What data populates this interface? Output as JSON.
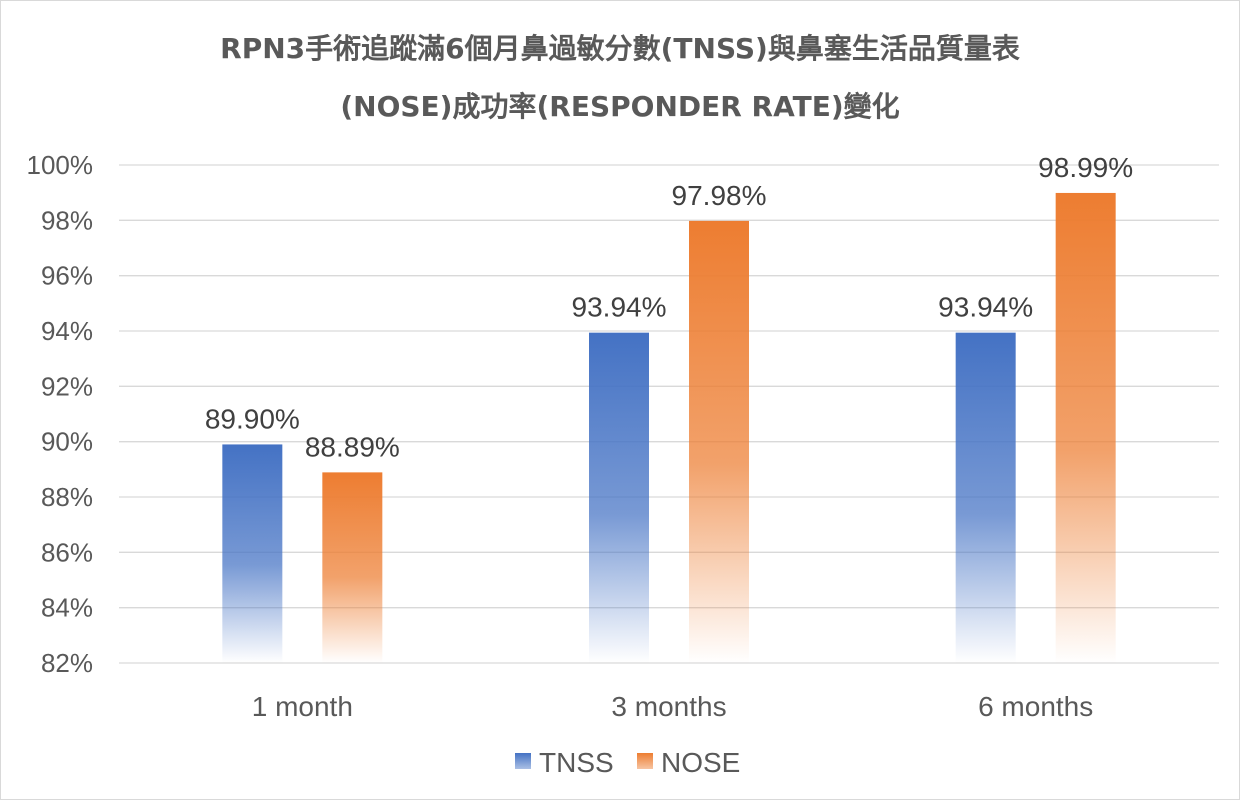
{
  "title_line1": "RPN3手術追蹤滿6個月鼻過敏分數(TNSS)與鼻塞生活品質量表",
  "title_line2": "(NOSE)成功率(RESPONDER RATE)變化",
  "colors": {
    "tnss": "#4472c4",
    "nose": "#ed7d31",
    "grid": "#d9d9d9",
    "text": "#595959"
  },
  "chart_data": {
    "type": "bar",
    "title": "RPN3手術追蹤滿6個月鼻過敏分數(TNSS)與鼻塞生活品質量表 (NOSE)成功率(RESPONDER RATE)變化",
    "categories": [
      "1 month",
      "3 months",
      "6 months"
    ],
    "series": [
      {
        "name": "TNSS",
        "values": [
          89.9,
          93.94,
          93.94
        ],
        "labels": [
          "89.90%",
          "93.94%",
          "93.94%"
        ]
      },
      {
        "name": "NOSE",
        "values": [
          88.89,
          97.98,
          98.99
        ],
        "labels": [
          "88.89%",
          "97.98%",
          "98.99%"
        ]
      }
    ],
    "ylim": [
      82,
      100
    ],
    "yticks": [
      82,
      84,
      86,
      88,
      90,
      92,
      94,
      96,
      98,
      100
    ],
    "ytick_labels": [
      "82%",
      "84%",
      "86%",
      "88%",
      "90%",
      "92%",
      "94%",
      "96%",
      "98%",
      "100%"
    ],
    "grid": true,
    "legend_position": "bottom",
    "bar_style": "gradient-fade"
  }
}
